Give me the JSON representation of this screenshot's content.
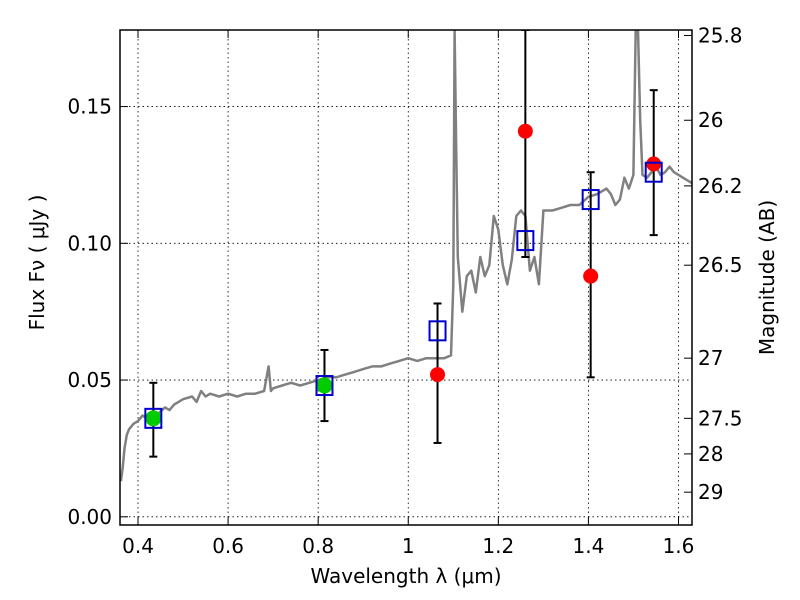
{
  "chart_data": {
    "type": "scatter",
    "xlabel": "Wavelength  λ (μm)",
    "ylabel": "Flux  Fν  ( μJy )",
    "y2label": "Magnitude (AB)",
    "xlim": [
      0.36,
      1.63
    ],
    "ylim": [
      -0.003,
      0.178
    ],
    "grid": true,
    "x_ticks": [
      0.4,
      0.6,
      0.8,
      1.0,
      1.2,
      1.4,
      1.6
    ],
    "x_tick_labels": [
      "0.4",
      "0.6",
      "0.8",
      "1",
      "1.2",
      "1.4",
      "1.6"
    ],
    "y_ticks": [
      0.0,
      0.05,
      0.1,
      0.15
    ],
    "y_tick_labels": [
      "0.00",
      "0.05",
      "0.10",
      "0.15"
    ],
    "y2_ticks": [
      {
        "label": "25.8",
        "flux": 0.176
      },
      {
        "label": "26",
        "flux": 0.145
      },
      {
        "label": "26.2",
        "flux": 0.121
      },
      {
        "label": "26.5",
        "flux": 0.092
      },
      {
        "label": "27",
        "flux": 0.058
      },
      {
        "label": "27.5",
        "flux": 0.036
      },
      {
        "label": "28",
        "flux": 0.023
      },
      {
        "label": "29",
        "flux": 0.009
      }
    ],
    "colors": {
      "spectrum": "#808080",
      "model_square": "#0000cc",
      "green_point": "#00cc00",
      "red_point": "#ff0000",
      "errorbar": "#000000"
    },
    "spectrum": {
      "name": "",
      "x": [
        0.362,
        0.366,
        0.37,
        0.375,
        0.38,
        0.39,
        0.4,
        0.41,
        0.42,
        0.44,
        0.46,
        0.47,
        0.48,
        0.5,
        0.52,
        0.53,
        0.54,
        0.55,
        0.56,
        0.58,
        0.6,
        0.62,
        0.64,
        0.66,
        0.68,
        0.69,
        0.695,
        0.7,
        0.72,
        0.74,
        0.76,
        0.78,
        0.8,
        0.82,
        0.84,
        0.86,
        0.88,
        0.9,
        0.92,
        0.94,
        0.96,
        0.98,
        1.0,
        1.02,
        1.04,
        1.06,
        1.08,
        1.095,
        1.1,
        1.103,
        1.106,
        1.11,
        1.12,
        1.13,
        1.14,
        1.15,
        1.16,
        1.17,
        1.18,
        1.19,
        1.2,
        1.21,
        1.22,
        1.23,
        1.24,
        1.25,
        1.26,
        1.27,
        1.28,
        1.29,
        1.3,
        1.31,
        1.32,
        1.34,
        1.36,
        1.38,
        1.4,
        1.42,
        1.44,
        1.45,
        1.46,
        1.47,
        1.48,
        1.49,
        1.5,
        1.505,
        1.51,
        1.515,
        1.52,
        1.53,
        1.54,
        1.55,
        1.56,
        1.57,
        1.58,
        1.59,
        1.6,
        1.61,
        1.62,
        1.63
      ],
      "y": [
        0.013,
        0.018,
        0.025,
        0.03,
        0.032,
        0.034,
        0.035,
        0.037,
        0.036,
        0.037,
        0.04,
        0.039,
        0.041,
        0.043,
        0.044,
        0.042,
        0.046,
        0.044,
        0.045,
        0.044,
        0.045,
        0.044,
        0.045,
        0.045,
        0.046,
        0.055,
        0.046,
        0.047,
        0.048,
        0.049,
        0.048,
        0.049,
        0.05,
        0.051,
        0.051,
        0.052,
        0.053,
        0.054,
        0.055,
        0.055,
        0.056,
        0.057,
        0.058,
        0.057,
        0.058,
        0.058,
        0.058,
        0.059,
        0.085,
        0.178,
        0.14,
        0.095,
        0.075,
        0.088,
        0.09,
        0.082,
        0.095,
        0.088,
        0.092,
        0.11,
        0.105,
        0.092,
        0.085,
        0.094,
        0.11,
        0.112,
        0.11,
        0.09,
        0.095,
        0.085,
        0.112,
        0.112,
        0.112,
        0.113,
        0.114,
        0.114,
        0.117,
        0.118,
        0.12,
        0.118,
        0.114,
        0.116,
        0.124,
        0.12,
        0.125,
        0.178,
        0.178,
        0.145,
        0.125,
        0.124,
        0.126,
        0.128,
        0.125,
        0.126,
        0.128,
        0.126,
        0.125,
        0.124,
        0.123,
        0.122
      ]
    },
    "series": [
      {
        "name": "",
        "marker": "square",
        "x": [
          0.434,
          0.814,
          1.065,
          1.26,
          1.405,
          1.545
        ],
        "y": [
          0.036,
          0.048,
          0.068,
          0.101,
          0.116,
          0.126
        ]
      },
      {
        "name": "",
        "marker": "circle-green",
        "x": [
          0.434,
          0.814
        ],
        "y": [
          0.036,
          0.048
        ]
      },
      {
        "name": "",
        "marker": "circle-red",
        "x": [
          1.065,
          1.26,
          1.405,
          1.545
        ],
        "y": [
          0.052,
          0.141,
          0.088,
          0.129
        ]
      }
    ],
    "errorbars": [
      {
        "x": 0.434,
        "y": 0.036,
        "low": 0.022,
        "high": 0.049
      },
      {
        "x": 0.814,
        "y": 0.048,
        "low": 0.035,
        "high": 0.061
      },
      {
        "x": 1.065,
        "y": 0.052,
        "low": 0.027,
        "high": 0.078
      },
      {
        "x": 1.26,
        "y": 0.141,
        "low": 0.095,
        "high": 0.178
      },
      {
        "x": 1.405,
        "y": 0.088,
        "low": 0.051,
        "high": 0.126
      },
      {
        "x": 1.545,
        "y": 0.129,
        "low": 0.103,
        "high": 0.156
      }
    ]
  }
}
